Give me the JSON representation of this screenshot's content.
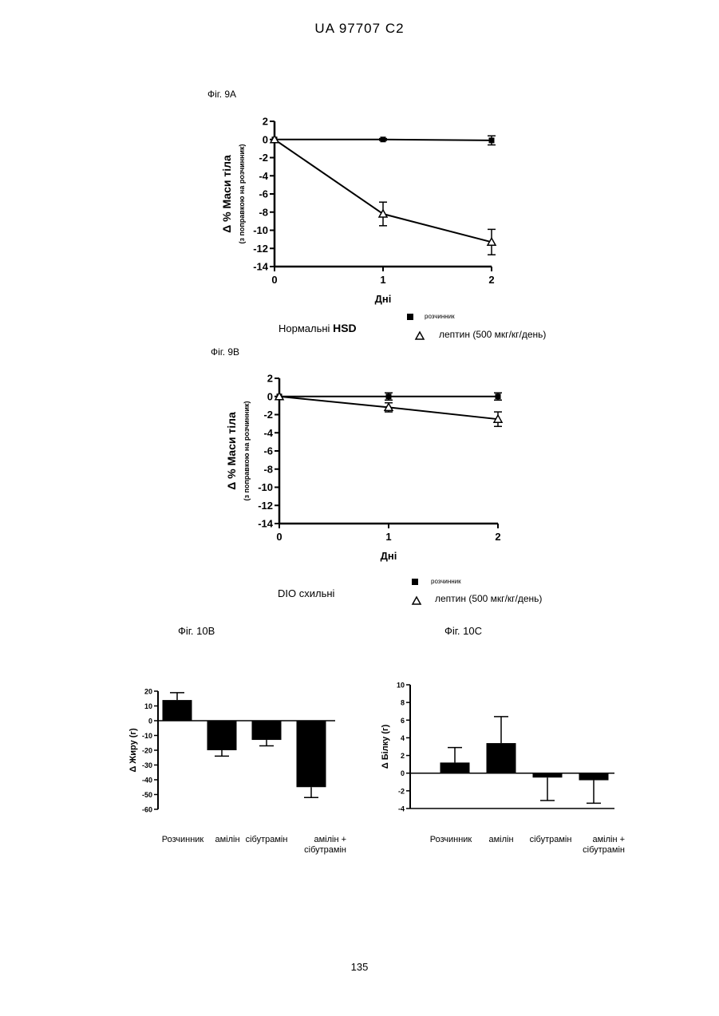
{
  "header": "UA   97707   C2",
  "page_number": "135",
  "figures": {
    "fig9a": {
      "label": "Фіг. 9А",
      "subtitle_prefix": "Нормальні",
      "subtitle_bold": "HSD",
      "legend_vehicle": "розчинник",
      "legend_leptin": "лептин (500 мкг/кг/день)"
    },
    "fig9b": {
      "label": "Фіг. 9В",
      "subtitle": "DIO схильні",
      "legend_vehicle": "розчинник",
      "legend_leptin": "лептин (500 мкг/кг/день)"
    },
    "fig10b": {
      "label": "Фіг. 10В"
    },
    "fig10c": {
      "label": "Фіг. 10С"
    }
  },
  "chart_data": [
    {
      "type": "line",
      "id": "fig9a",
      "x": [
        0,
        1,
        2
      ],
      "xticks": [
        "0",
        "1",
        "2"
      ],
      "xlabel": "Дні",
      "ylabel": "Δ % Маси тіла",
      "ylabel_sub": "(з поправкою на розчинник)",
      "ylim": [
        -14,
        2
      ],
      "yticks": [
        "2",
        "0",
        "-2",
        "-4",
        "-6",
        "-8",
        "-10",
        "-12",
        "-14"
      ],
      "series": [
        {
          "name": "розчинник",
          "marker": "square",
          "values": [
            0,
            0,
            -0.1
          ],
          "err": [
            0,
            0.1,
            0.5
          ]
        },
        {
          "name": "лептин (500 мкг/кг/день)",
          "marker": "triangle",
          "values": [
            0,
            -8.2,
            -11.3
          ],
          "err": [
            0,
            1.3,
            1.4
          ]
        }
      ]
    },
    {
      "type": "line",
      "id": "fig9b",
      "x": [
        0,
        1,
        2
      ],
      "xticks": [
        "0",
        "1",
        "2"
      ],
      "xlabel": "Дні",
      "ylabel": "Δ % Маси тіла",
      "ylabel_sub": "(з поправкою на розчинник)",
      "ylim": [
        -14,
        2
      ],
      "yticks": [
        "2",
        "0",
        "-2",
        "-4",
        "-6",
        "-8",
        "-10",
        "-12",
        "-14"
      ],
      "series": [
        {
          "name": "розчинник",
          "marker": "square",
          "values": [
            0,
            0,
            0
          ],
          "err": [
            0,
            0.4,
            0.4
          ]
        },
        {
          "name": "лептин (500 мкг/кг/день)",
          "marker": "triangle",
          "values": [
            0,
            -1.2,
            -2.5
          ],
          "err": [
            0,
            0.5,
            0.8
          ]
        }
      ]
    },
    {
      "type": "bar",
      "id": "fig10b",
      "categories": [
        "Розчинник",
        "амілін",
        "сібутрамін",
        "амілін + сібутрамін"
      ],
      "category_lines": [
        [
          "Розчинник"
        ],
        [
          "амілін"
        ],
        [
          "сібутрамін"
        ],
        [
          "амілін +",
          "сібутрамін"
        ]
      ],
      "values": [
        14,
        -20,
        -13,
        -45
      ],
      "err": [
        5,
        4,
        4,
        7
      ],
      "ylabel": "Δ Жиру (г)",
      "ylim": [
        -60,
        20
      ],
      "yticks": [
        "20",
        "10",
        "0",
        "-10",
        "-20",
        "-30",
        "-40",
        "-50",
        "-60"
      ]
    },
    {
      "type": "bar",
      "id": "fig10c",
      "categories": [
        "Розчинник",
        "амілін",
        "сібутрамін",
        "амілін + сібутрамін"
      ],
      "category_lines": [
        [
          "Розчинник"
        ],
        [
          "амілін"
        ],
        [
          "сібутрамін"
        ],
        [
          "амілін +",
          "сібутрамін"
        ]
      ],
      "values": [
        1.2,
        3.4,
        -0.5,
        -0.8
      ],
      "err": [
        1.7,
        3.0,
        2.6,
        2.6
      ],
      "ylabel": "Δ Білку (г)",
      "ylim": [
        -4,
        10
      ],
      "yticks": [
        "10",
        "8",
        "6",
        "4",
        "2",
        "0",
        "-2",
        "-4"
      ]
    }
  ]
}
